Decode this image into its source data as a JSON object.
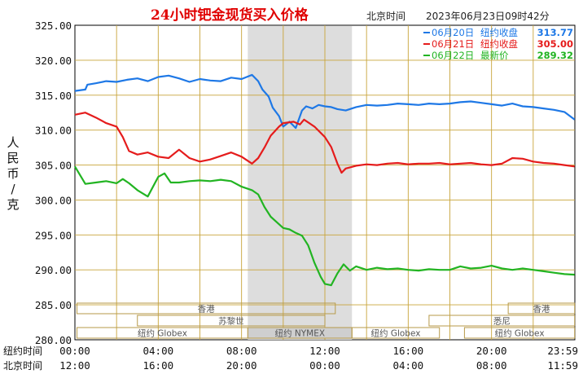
{
  "chart_data": {
    "type": "line",
    "title": "24小时钯金现货买入价格",
    "timezone_label": "北京时间",
    "timestamp": "2023年06月23日09时42分",
    "ylabel": "人民币/克",
    "ylim": [
      280,
      325
    ],
    "yticks": [
      "325.00",
      "320.00",
      "315.00",
      "310.00",
      "305.00",
      "300.00",
      "295.00",
      "290.00",
      "285.00",
      "280.00"
    ],
    "grid": true,
    "x_rows": [
      {
        "label": "纽约时间",
        "ticks": [
          "00:00",
          "04:00",
          "08:00",
          "12:00",
          "16:00",
          "20:00",
          "23:59"
        ]
      },
      {
        "label": "北京时间",
        "ticks": [
          "12:00",
          "16:00",
          "20:00",
          "00:00",
          "04:00",
          "08:00",
          "11:59"
        ]
      }
    ],
    "highlight_range_hours": [
      8.3,
      13.3
    ],
    "sessions": [
      {
        "name": "香港",
        "start": 0.1,
        "end": 12.5,
        "row": 0
      },
      {
        "name": "苏黎世",
        "start": 3.0,
        "end": 12.0,
        "row": 1
      },
      {
        "name": "纽约 Globex",
        "start": 0.1,
        "end": 8.3,
        "row": 2
      },
      {
        "name": "纽约 NYMEX",
        "start": 8.3,
        "end": 13.3,
        "row": 2
      },
      {
        "name": "纽约 Globex",
        "start": 13.3,
        "end": 17.5,
        "row": 2
      },
      {
        "name": "悉尼",
        "start": 17.0,
        "end": 23.99,
        "row": 1
      },
      {
        "name": "香港",
        "start": 20.8,
        "end": 23.99,
        "row": 0
      },
      {
        "name": "纽约 Globex",
        "start": 18.7,
        "end": 23.99,
        "row": 2
      }
    ],
    "legend_position": "top-right",
    "series": [
      {
        "name": "06月20日",
        "legend_label": "纽约收盘",
        "legend_value": "313.77",
        "color": "#1e78e6",
        "x": [
          0,
          0.5,
          0.6,
          1.0,
          1.5,
          2.0,
          2.5,
          3.0,
          3.5,
          4.0,
          4.5,
          5.0,
          5.5,
          6.0,
          6.5,
          7.0,
          7.5,
          8.0,
          8.5,
          8.8,
          9.0,
          9.3,
          9.5,
          9.8,
          10.0,
          10.3,
          10.6,
          10.9,
          11.1,
          11.4,
          11.7,
          12.0,
          12.3,
          12.6,
          13.0,
          13.5,
          14.0,
          14.5,
          15.0,
          15.5,
          16.0,
          16.5,
          17.0,
          17.5,
          18.0,
          18.5,
          19.0,
          19.5,
          20.0,
          20.5,
          21.0,
          21.5,
          22.0,
          22.5,
          23.0,
          23.5,
          23.99
        ],
        "y": [
          315.6,
          315.8,
          316.5,
          316.7,
          317.0,
          316.9,
          317.2,
          317.4,
          317.0,
          317.6,
          317.8,
          317.4,
          316.9,
          317.3,
          317.1,
          317.0,
          317.5,
          317.3,
          317.9,
          317.0,
          315.8,
          314.8,
          313.2,
          312.0,
          310.5,
          311.2,
          310.3,
          312.8,
          313.4,
          313.1,
          313.6,
          313.4,
          313.3,
          313.0,
          312.8,
          313.3,
          313.6,
          313.5,
          313.6,
          313.8,
          313.7,
          313.6,
          313.8,
          313.7,
          313.8,
          314.0,
          314.1,
          313.9,
          313.7,
          313.5,
          313.8,
          313.4,
          313.3,
          313.1,
          312.9,
          312.6,
          311.5
        ]
      },
      {
        "name": "06月21日",
        "legend_label": "纽约收盘",
        "legend_value": "305.00",
        "color": "#e51c1c",
        "x": [
          0,
          0.5,
          1.0,
          1.5,
          2.0,
          2.3,
          2.6,
          3.0,
          3.5,
          4.0,
          4.5,
          5.0,
          5.5,
          6.0,
          6.5,
          7.0,
          7.5,
          8.0,
          8.5,
          8.8,
          9.1,
          9.4,
          9.8,
          10.0,
          10.5,
          10.8,
          11.0,
          11.5,
          12.0,
          12.3,
          12.6,
          12.8,
          13.0,
          13.5,
          14.0,
          14.5,
          15.0,
          15.5,
          16.0,
          16.5,
          17.0,
          17.5,
          18.0,
          18.5,
          19.0,
          19.5,
          20.0,
          20.5,
          21.0,
          21.5,
          22.0,
          22.5,
          23.0,
          23.5,
          23.99
        ],
        "y": [
          312.2,
          312.5,
          311.8,
          311.0,
          310.5,
          309.0,
          307.0,
          306.5,
          306.8,
          306.2,
          306.0,
          307.2,
          306.0,
          305.5,
          305.8,
          306.3,
          306.8,
          306.2,
          305.2,
          306.0,
          307.5,
          309.2,
          310.5,
          311.0,
          311.2,
          310.8,
          311.5,
          310.5,
          309.0,
          307.6,
          305.2,
          303.9,
          304.5,
          304.9,
          305.1,
          305.0,
          305.2,
          305.3,
          305.1,
          305.2,
          305.2,
          305.3,
          305.1,
          305.2,
          305.3,
          305.1,
          305.0,
          305.2,
          306.0,
          305.9,
          305.5,
          305.3,
          305.2,
          305.0,
          304.8
        ]
      },
      {
        "name": "06月22日",
        "legend_label": "最新价",
        "legend_value": "289.32",
        "color": "#22b422",
        "x": [
          0,
          0.5,
          1.0,
          1.5,
          2.0,
          2.3,
          2.6,
          3.0,
          3.5,
          4.0,
          4.3,
          4.6,
          5.0,
          5.5,
          6.0,
          6.5,
          7.0,
          7.5,
          8.0,
          8.5,
          8.8,
          9.1,
          9.4,
          9.7,
          10.0,
          10.3,
          10.6,
          10.9,
          11.2,
          11.5,
          11.8,
          12.0,
          12.3,
          12.6,
          12.9,
          13.2,
          13.5,
          14.0,
          14.5,
          15.0,
          15.5,
          16.0,
          16.5,
          17.0,
          17.5,
          18.0,
          18.5,
          19.0,
          19.5,
          20.0,
          20.5,
          21.0,
          21.5,
          22.0,
          22.5,
          23.0,
          23.5,
          23.99
        ],
        "y": [
          304.8,
          302.3,
          302.5,
          302.7,
          302.4,
          303.0,
          302.4,
          301.4,
          300.5,
          303.3,
          303.8,
          302.5,
          302.5,
          302.7,
          302.8,
          302.7,
          302.9,
          302.7,
          301.9,
          301.4,
          300.8,
          299.0,
          297.6,
          296.8,
          296.0,
          295.8,
          295.3,
          294.9,
          293.5,
          291.0,
          289.0,
          288.0,
          287.8,
          289.5,
          290.8,
          289.9,
          290.5,
          290.0,
          290.3,
          290.1,
          290.2,
          290.0,
          289.9,
          290.1,
          290.0,
          290.0,
          290.5,
          290.2,
          290.3,
          290.6,
          290.2,
          290.0,
          290.2,
          290.0,
          289.8,
          289.6,
          289.4,
          289.32
        ]
      }
    ]
  }
}
